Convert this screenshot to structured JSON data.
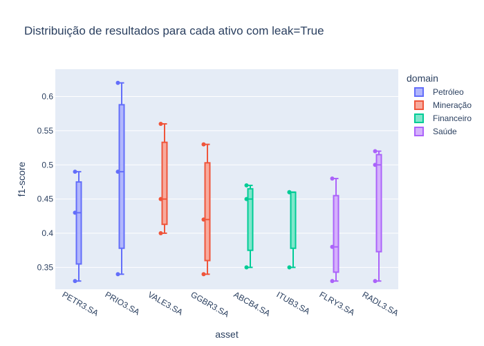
{
  "chart_data": {
    "type": "box",
    "title": "Distribuição de resultados para cada ativo com leak=True",
    "xlabel": "asset",
    "ylabel": "f1-score",
    "ylim": [
      0.318,
      0.64
    ],
    "yticks": [
      0.35,
      0.4,
      0.45,
      0.5,
      0.55,
      0.6
    ],
    "ytick_labels": [
      "0.35",
      "0.4",
      "0.45",
      "0.5",
      "0.55",
      "0.6"
    ],
    "grid": true,
    "legend_title": "domain",
    "legend_position": "top-right",
    "categories": [
      "PETR3.SA",
      "PRIO3.SA",
      "VALE3.SA",
      "GGBR3.SA",
      "ABCB4.SA",
      "ITUB3.SA",
      "FLRY3.SA",
      "RADL3.SA"
    ],
    "series": [
      {
        "name": "Petróleo",
        "color": "#636efa",
        "fill": "#b1b6fc",
        "boxes": [
          {
            "category": "PETR3.SA",
            "points": [
              0.49,
              0.43,
              0.33
            ],
            "min": 0.33,
            "q1": 0.355,
            "median": 0.43,
            "q3": 0.475,
            "max": 0.49
          },
          {
            "category": "PRIO3.SA",
            "points": [
              0.62,
              0.49,
              0.34
            ],
            "min": 0.34,
            "q1": 0.378,
            "median": 0.49,
            "q3": 0.588,
            "max": 0.62
          }
        ]
      },
      {
        "name": "Mineração",
        "color": "#ef553b",
        "fill": "#f7aa9d",
        "boxes": [
          {
            "category": "VALE3.SA",
            "points": [
              0.56,
              0.45,
              0.4
            ],
            "min": 0.4,
            "q1": 0.413,
            "median": 0.45,
            "q3": 0.533,
            "max": 0.56
          },
          {
            "category": "GGBR3.SA",
            "points": [
              0.53,
              0.42,
              0.34
            ],
            "min": 0.34,
            "q1": 0.36,
            "median": 0.42,
            "q3": 0.503,
            "max": 0.53
          }
        ]
      },
      {
        "name": "Financeiro",
        "color": "#00cc96",
        "fill": "#80e6cb",
        "boxes": [
          {
            "category": "ABCB4.SA",
            "points": [
              0.47,
              0.45,
              0.35
            ],
            "min": 0.35,
            "q1": 0.375,
            "median": 0.45,
            "q3": 0.465,
            "max": 0.47
          },
          {
            "category": "ITUB3.SA",
            "points": [
              0.46,
              0.46,
              0.35
            ],
            "min": 0.35,
            "q1": 0.378,
            "median": 0.46,
            "q3": 0.46,
            "max": 0.46
          }
        ]
      },
      {
        "name": "Saúde",
        "color": "#ab63fa",
        "fill": "#d5b1fc",
        "boxes": [
          {
            "category": "FLRY3.SA",
            "points": [
              0.48,
              0.38,
              0.33
            ],
            "min": 0.33,
            "q1": 0.343,
            "median": 0.38,
            "q3": 0.455,
            "max": 0.48
          },
          {
            "category": "RADL3.SA",
            "points": [
              0.52,
              0.5,
              0.33
            ],
            "min": 0.33,
            "q1": 0.373,
            "median": 0.5,
            "q3": 0.515,
            "max": 0.52
          }
        ]
      }
    ]
  }
}
